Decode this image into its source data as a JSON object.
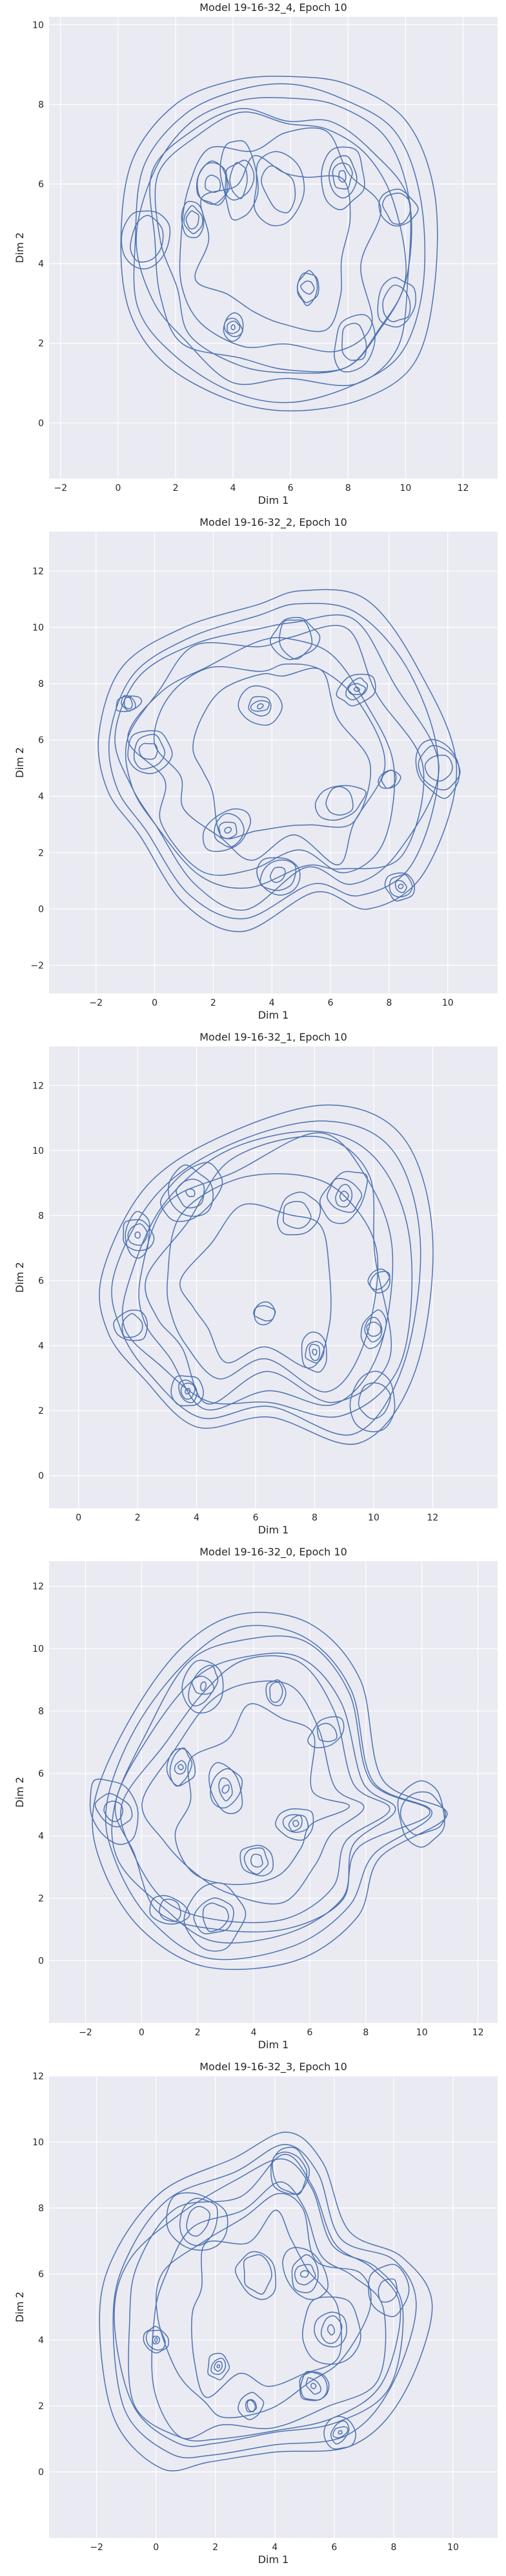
{
  "chart_data": [
    {
      "type": "contour",
      "title": "Model 19-16-32_4, Epoch 10",
      "xlabel": "Dim 1",
      "ylabel": "Dim 2",
      "xlim": [
        -2.4,
        13.2
      ],
      "ylim": [
        -1.4,
        10.2
      ],
      "xticks": [
        -2,
        0,
        2,
        4,
        6,
        8,
        10,
        12
      ],
      "yticks": [
        0,
        2,
        4,
        6,
        8,
        10
      ],
      "grid": true,
      "line_color": "#4c72b0",
      "outer_boundary": [
        [
          0.1,
          4.6
        ],
        [
          0.5,
          6.6
        ],
        [
          2.0,
          8.0
        ],
        [
          4.0,
          8.6
        ],
        [
          6.0,
          8.7
        ],
        [
          8.0,
          8.5
        ],
        [
          10.0,
          7.6
        ],
        [
          11.0,
          5.8
        ],
        [
          11.0,
          3.4
        ],
        [
          10.3,
          1.5
        ],
        [
          8.5,
          0.6
        ],
        [
          6.0,
          0.3
        ],
        [
          3.8,
          0.6
        ],
        [
          1.6,
          1.5
        ],
        [
          0.4,
          2.8
        ]
      ],
      "peaks": [
        [
          1.0,
          4.6
        ],
        [
          2.6,
          5.1
        ],
        [
          4.2,
          6.1
        ],
        [
          5.6,
          5.9
        ],
        [
          6.6,
          3.4
        ],
        [
          8.2,
          2.0
        ],
        [
          9.7,
          3.0
        ],
        [
          9.7,
          5.4
        ],
        [
          4.0,
          2.4
        ],
        [
          7.8,
          6.2
        ],
        [
          3.3,
          6.0
        ]
      ]
    },
    {
      "type": "contour",
      "title": "Model 19-16-32_2, Epoch 10",
      "xlabel": "Dim 1",
      "ylabel": "Dim 2",
      "xlim": [
        -3.6,
        11.7
      ],
      "ylim": [
        -3.0,
        13.4
      ],
      "xticks": [
        -2,
        0,
        2,
        4,
        6,
        8,
        10
      ],
      "yticks": [
        -2,
        0,
        2,
        4,
        6,
        8,
        10,
        12
      ],
      "grid": true,
      "line_color": "#4c72b0",
      "outer_boundary": [
        [
          -1.9,
          6.2
        ],
        [
          -1.1,
          8.6
        ],
        [
          1.0,
          10.0
        ],
        [
          3.5,
          10.8
        ],
        [
          5.0,
          11.3
        ],
        [
          7.2,
          11.0
        ],
        [
          9.0,
          8.5
        ],
        [
          10.3,
          5.0
        ],
        [
          9.2,
          1.3
        ],
        [
          7.3,
          0.0
        ],
        [
          5.5,
          0.6
        ],
        [
          3.0,
          -0.8
        ],
        [
          1.0,
          0.2
        ],
        [
          -0.5,
          2.6
        ],
        [
          -1.6,
          4.2
        ]
      ],
      "peaks": [
        [
          -0.9,
          7.3
        ],
        [
          -0.2,
          5.6
        ],
        [
          3.6,
          7.2
        ],
        [
          4.8,
          9.6
        ],
        [
          6.9,
          7.8
        ],
        [
          8.0,
          4.6
        ],
        [
          9.7,
          5.0
        ],
        [
          6.3,
          3.8
        ],
        [
          2.5,
          2.8
        ],
        [
          4.2,
          1.2
        ],
        [
          8.4,
          0.8
        ]
      ]
    },
    {
      "type": "contour",
      "title": "Model 19-16-32_1, Epoch 10",
      "xlabel": "Dim 1",
      "ylabel": "Dim 2",
      "xlim": [
        -1.0,
        14.2
      ],
      "ylim": [
        -1.0,
        13.2
      ],
      "xticks": [
        0,
        2,
        4,
        6,
        8,
        10,
        12
      ],
      "yticks": [
        0,
        2,
        4,
        6,
        8,
        10,
        12
      ],
      "grid": true,
      "line_color": "#4c72b0",
      "outer_boundary": [
        [
          0.8,
          6.2
        ],
        [
          2.3,
          8.9
        ],
        [
          5.0,
          10.5
        ],
        [
          8.5,
          11.4
        ],
        [
          11.0,
          10.4
        ],
        [
          12.0,
          7.3
        ],
        [
          11.4,
          3.2
        ],
        [
          9.5,
          1.0
        ],
        [
          6.5,
          1.8
        ],
        [
          4.0,
          1.5
        ],
        [
          2.2,
          3.0
        ],
        [
          1.0,
          4.4
        ]
      ],
      "peaks": [
        [
          1.8,
          4.6
        ],
        [
          2.0,
          7.4
        ],
        [
          3.8,
          8.7
        ],
        [
          7.4,
          8.0
        ],
        [
          9.0,
          8.6
        ],
        [
          6.3,
          5.0
        ],
        [
          10.2,
          6.0
        ],
        [
          10.0,
          4.5
        ],
        [
          10.0,
          2.3
        ],
        [
          3.7,
          2.6
        ],
        [
          8.0,
          3.8
        ]
      ]
    },
    {
      "type": "contour",
      "title": "Model 19-16-32_0, Epoch 10",
      "xlabel": "Dim 1",
      "ylabel": "Dim 2",
      "xlim": [
        -3.3,
        12.7
      ],
      "ylim": [
        -2.0,
        12.8
      ],
      "xticks": [
        -2,
        0,
        2,
        4,
        6,
        8,
        10,
        12
      ],
      "yticks": [
        0,
        2,
        4,
        6,
        8,
        10,
        12
      ],
      "grid": true,
      "line_color": "#4c72b0",
      "outer_boundary": [
        [
          -1.7,
          5.0
        ],
        [
          -0.5,
          7.6
        ],
        [
          1.4,
          10.0
        ],
        [
          3.5,
          11.1
        ],
        [
          6.0,
          10.8
        ],
        [
          7.8,
          9.0
        ],
        [
          8.6,
          5.8
        ],
        [
          10.9,
          4.7
        ],
        [
          8.5,
          3.3
        ],
        [
          7.7,
          1.4
        ],
        [
          5.5,
          0.0
        ],
        [
          2.3,
          -0.2
        ],
        [
          0.0,
          1.0
        ],
        [
          -1.4,
          3.0
        ]
      ],
      "peaks": [
        [
          -1.0,
          4.8
        ],
        [
          1.0,
          1.6
        ],
        [
          1.4,
          6.2
        ],
        [
          2.2,
          8.8
        ],
        [
          4.8,
          8.6
        ],
        [
          3.0,
          5.5
        ],
        [
          5.5,
          4.4
        ],
        [
          6.6,
          7.3
        ],
        [
          2.6,
          1.4
        ],
        [
          10.0,
          4.7
        ],
        [
          4.1,
          3.2
        ]
      ]
    },
    {
      "type": "contour",
      "title": "Model 19-16-32_3, Epoch 10",
      "xlabel": "Dim 1",
      "ylabel": "Dim 2",
      "xlim": [
        -3.6,
        11.5
      ],
      "ylim": [
        -2.0,
        12.0
      ],
      "xticks": [
        -2,
        0,
        2,
        4,
        6,
        8,
        10
      ],
      "yticks": [
        0,
        2,
        4,
        6,
        8,
        10,
        12
      ],
      "grid": true,
      "line_color": "#4c72b0",
      "outer_boundary": [
        [
          -1.9,
          4.6
        ],
        [
          -1.4,
          6.6
        ],
        [
          0.2,
          8.5
        ],
        [
          2.6,
          9.5
        ],
        [
          4.4,
          10.3
        ],
        [
          5.6,
          9.4
        ],
        [
          6.5,
          7.3
        ],
        [
          8.3,
          6.5
        ],
        [
          9.3,
          5.0
        ],
        [
          8.3,
          2.3
        ],
        [
          6.6,
          0.8
        ],
        [
          4.0,
          0.6
        ],
        [
          1.8,
          0.3
        ],
        [
          0.2,
          0.1
        ],
        [
          -1.4,
          1.6
        ]
      ],
      "peaks": [
        [
          0.0,
          4.0
        ],
        [
          1.4,
          7.6
        ],
        [
          4.5,
          9.1
        ],
        [
          3.4,
          6.0
        ],
        [
          2.1,
          3.2
        ],
        [
          3.2,
          2.0
        ],
        [
          5.3,
          2.6
        ],
        [
          5.9,
          4.3
        ],
        [
          7.8,
          5.5
        ],
        [
          6.2,
          1.2
        ],
        [
          5.0,
          6.0
        ]
      ]
    }
  ]
}
